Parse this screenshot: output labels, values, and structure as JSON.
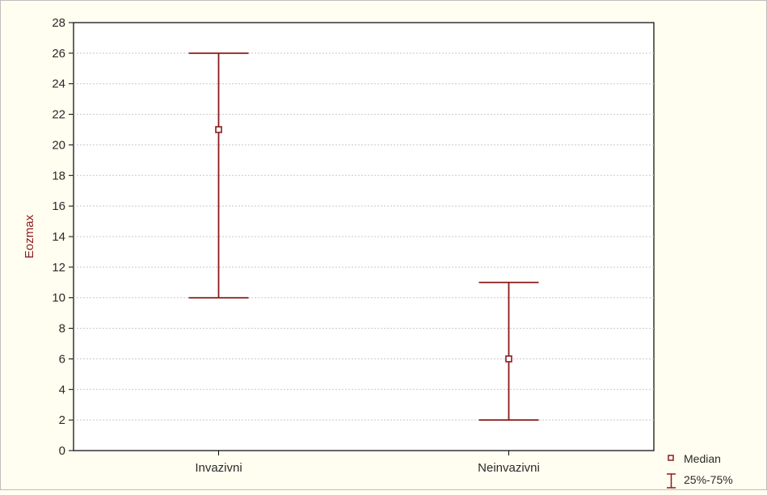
{
  "chart_data": {
    "type": "box",
    "categories": [
      "Invazivni",
      "Neinvazivni"
    ],
    "series": [
      {
        "name": "Median",
        "values": [
          21,
          6
        ]
      },
      {
        "name": "25%-75%",
        "ranges": [
          [
            10,
            26
          ],
          [
            2,
            11
          ]
        ]
      }
    ],
    "ylabel": "Eozmax",
    "xlabel": "",
    "ylim": [
      0,
      28
    ],
    "yticks": [
      0,
      2,
      4,
      6,
      8,
      10,
      12,
      14,
      16,
      18,
      20,
      22,
      24,
      26,
      28
    ],
    "grid": true,
    "legend": "bottom-right",
    "colors": {
      "marker": "#8b1a1a",
      "axis_text": "#2a2a2a",
      "grid": "#c8c8c8",
      "plot_bg": "#ffffff",
      "page_bg": "#fffef0"
    }
  },
  "legend": {
    "median_label": "Median",
    "range_label": "25%-75%"
  }
}
